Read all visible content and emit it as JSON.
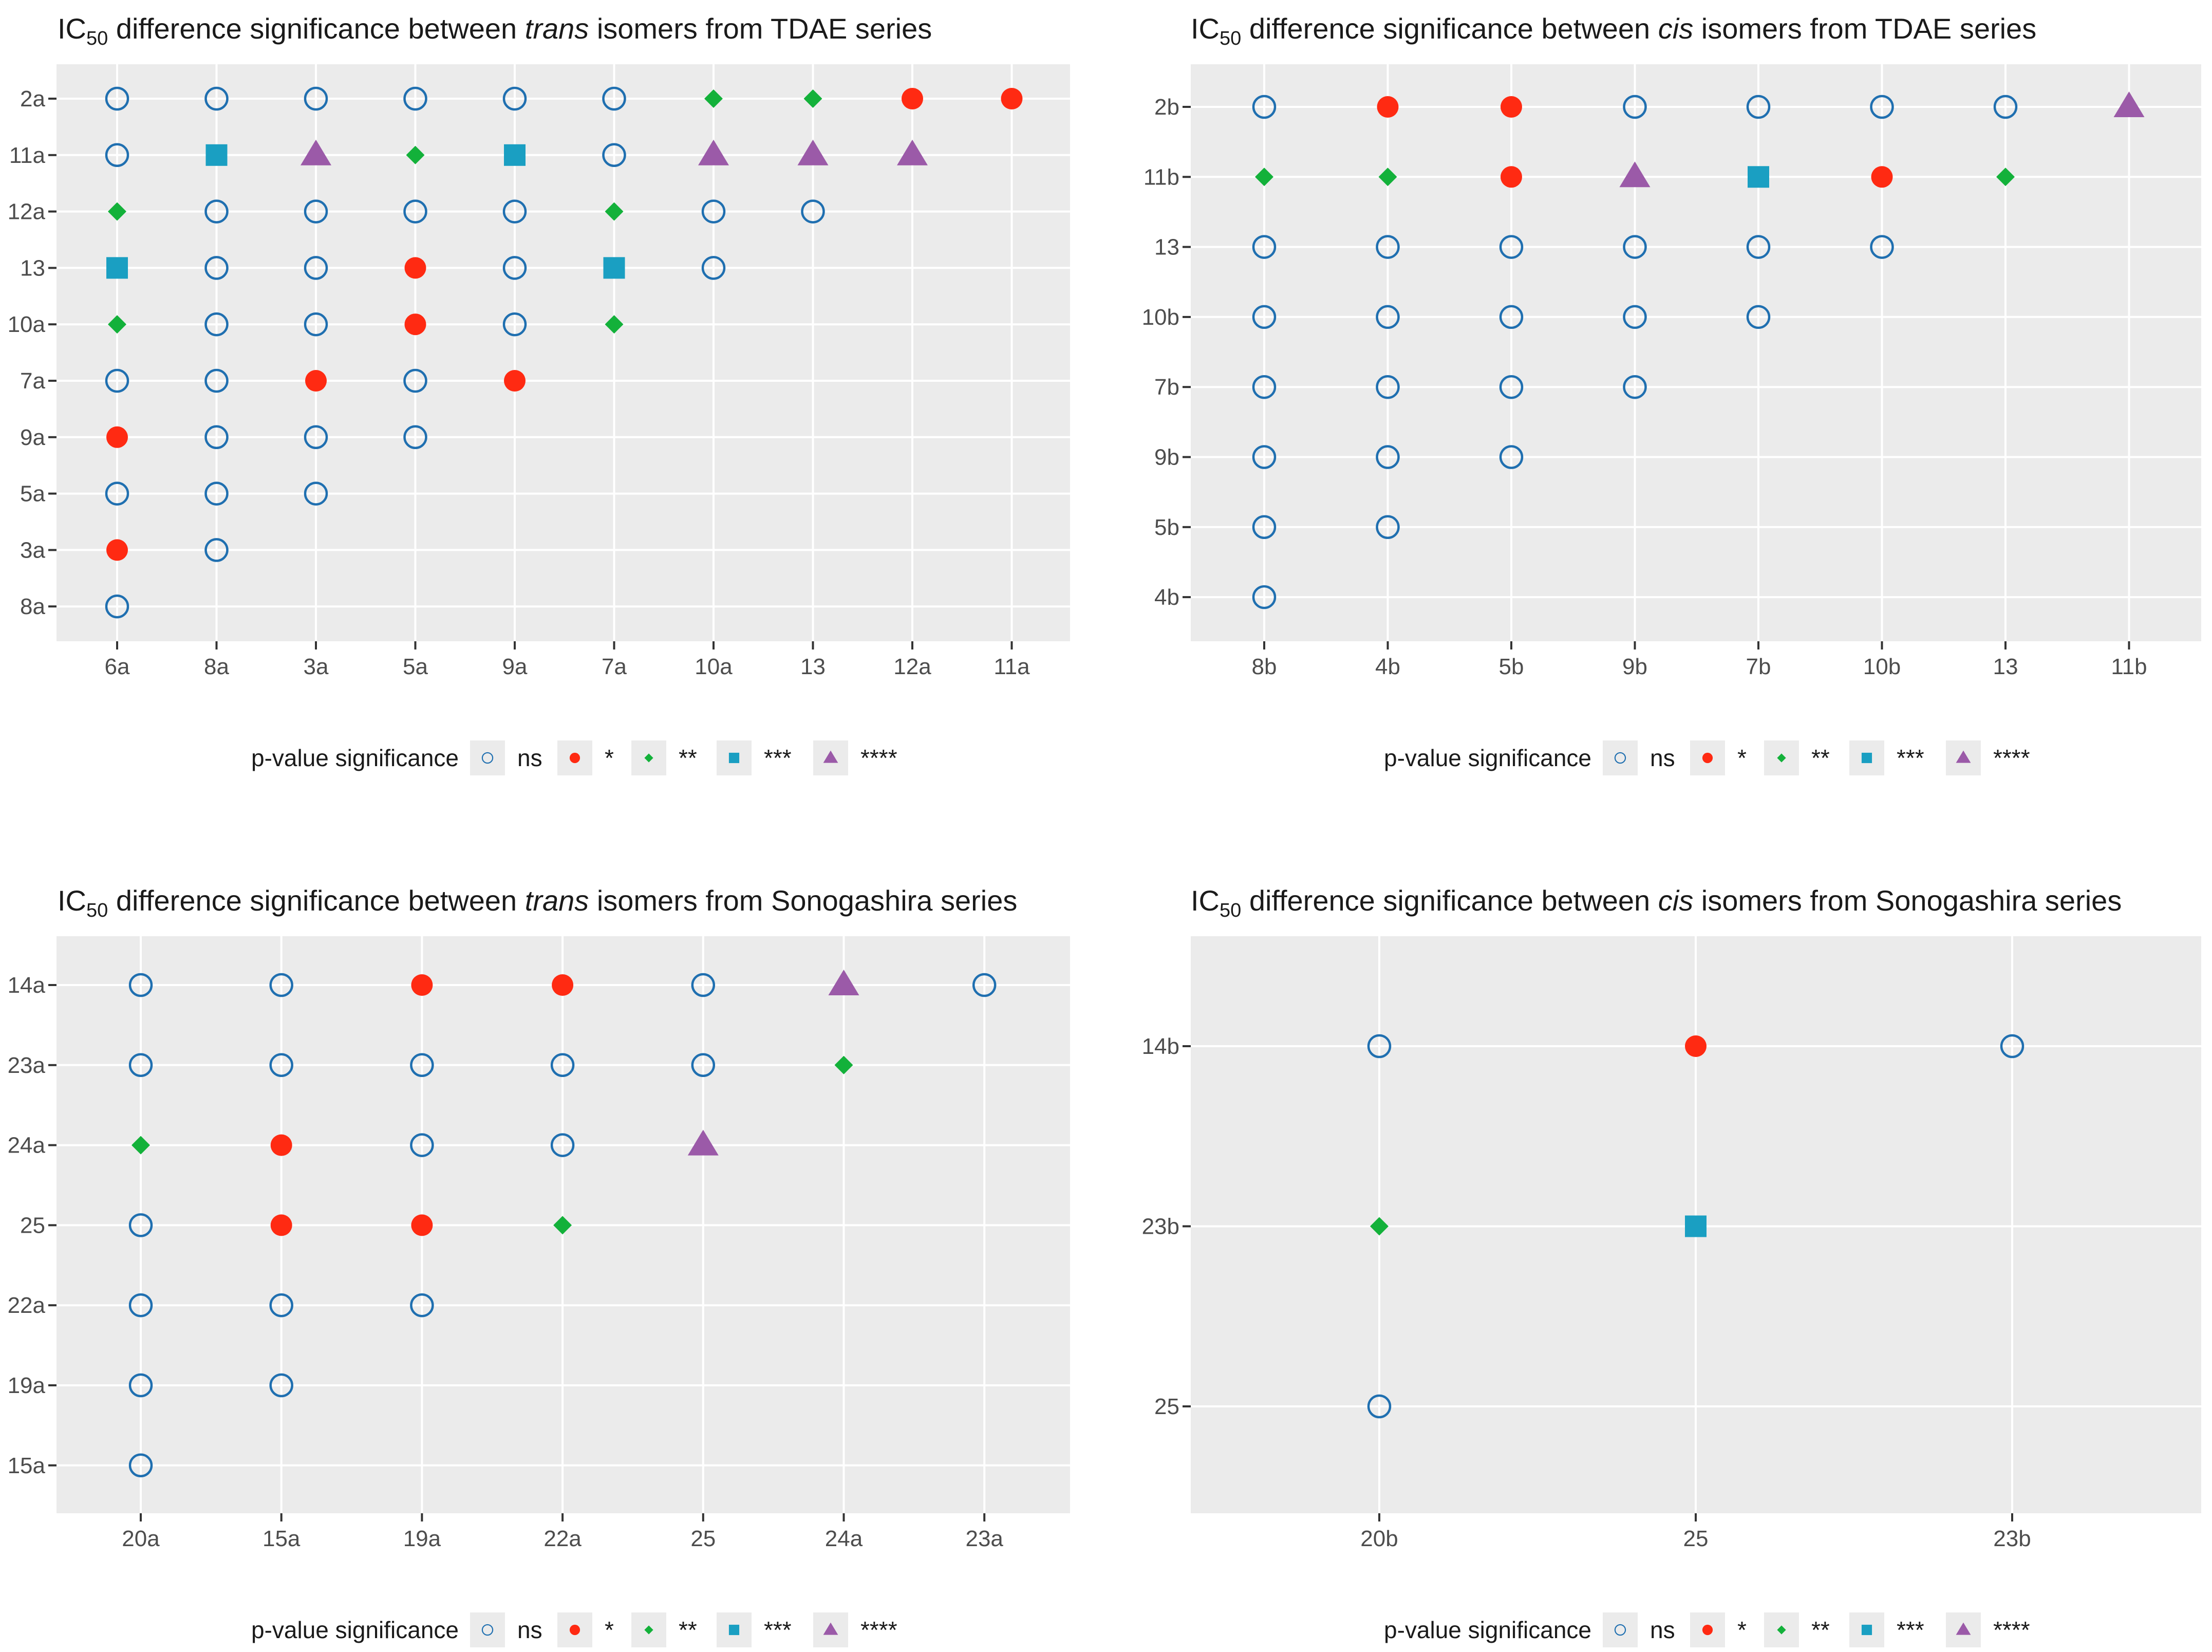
{
  "colors": {
    "ns": "#1f6fb0",
    "*": "#ff2a12",
    "**": "#13b13a",
    "***": "#1a9fc2",
    "****": "#9b5aa8",
    "panel_bg": "#ebebeb",
    "grid": "#ffffff",
    "text": "#1a1a1a",
    "tick_text": "#4d4d4d"
  },
  "legend": {
    "title": "p-value significance",
    "items": [
      {
        "key": "ns",
        "label": "ns",
        "shape": "open-circle-icon"
      },
      {
        "key": "*",
        "label": "*",
        "shape": "filled-circle-icon"
      },
      {
        "key": "**",
        "label": "**",
        "shape": "diamond-icon"
      },
      {
        "key": "***",
        "label": "***",
        "shape": "square-icon"
      },
      {
        "key": "****",
        "label": "****",
        "shape": "triangle-icon"
      }
    ]
  },
  "chart_data": [
    {
      "type": "scatter",
      "title": {
        "prefix": "IC",
        "sub": "50",
        "mid": " difference significance between ",
        "italic": "trans",
        "suffix": " isomers from TDAE series"
      },
      "x_categories": [
        "6a",
        "8a",
        "3a",
        "5a",
        "9a",
        "7a",
        "10a",
        "13",
        "12a",
        "11a"
      ],
      "y_categories": [
        "2a",
        "11a",
        "12a",
        "13",
        "10a",
        "7a",
        "9a",
        "5a",
        "3a",
        "8a"
      ],
      "rows": [
        [
          "ns",
          "ns",
          "ns",
          "ns",
          "ns",
          "ns",
          "**",
          "**",
          "*",
          "*"
        ],
        [
          "ns",
          "***",
          "****",
          "**",
          "***",
          "ns",
          "****",
          "****",
          "****"
        ],
        [
          "**",
          "ns",
          "ns",
          "ns",
          "ns",
          "**",
          "ns",
          "ns"
        ],
        [
          "***",
          "ns",
          "ns",
          "*",
          "ns",
          "***",
          "ns"
        ],
        [
          "**",
          "ns",
          "ns",
          "*",
          "ns",
          "**"
        ],
        [
          "ns",
          "ns",
          "*",
          "ns",
          "*"
        ],
        [
          "*",
          "ns",
          "ns",
          "ns"
        ],
        [
          "ns",
          "ns",
          "ns"
        ],
        [
          "*",
          "ns"
        ],
        [
          "ns"
        ]
      ]
    },
    {
      "type": "scatter",
      "title": {
        "prefix": "IC",
        "sub": "50",
        "mid": " difference significance between ",
        "italic": "cis",
        "suffix": " isomers from TDAE series"
      },
      "x_categories": [
        "8b",
        "4b",
        "5b",
        "9b",
        "7b",
        "10b",
        "13",
        "11b"
      ],
      "y_categories": [
        "2b",
        "11b",
        "13",
        "10b",
        "7b",
        "9b",
        "5b",
        "4b"
      ],
      "rows": [
        [
          "ns",
          "*",
          "*",
          "ns",
          "ns",
          "ns",
          "ns",
          "****"
        ],
        [
          "**",
          "**",
          "*",
          "****",
          "***",
          "*",
          "**"
        ],
        [
          "ns",
          "ns",
          "ns",
          "ns",
          "ns",
          "ns"
        ],
        [
          "ns",
          "ns",
          "ns",
          "ns",
          "ns"
        ],
        [
          "ns",
          "ns",
          "ns",
          "ns"
        ],
        [
          "ns",
          "ns",
          "ns"
        ],
        [
          "ns",
          "ns"
        ],
        [
          "ns"
        ]
      ]
    },
    {
      "type": "scatter",
      "title": {
        "prefix": "IC",
        "sub": "50",
        "mid": " difference significance between ",
        "italic": "trans",
        "suffix": " isomers from Sonogashira series"
      },
      "x_categories": [
        "20a",
        "15a",
        "19a",
        "22a",
        "25",
        "24a",
        "23a"
      ],
      "y_categories": [
        "14a",
        "23a",
        "24a",
        "25",
        "22a",
        "19a",
        "15a"
      ],
      "rows": [
        [
          "ns",
          "ns",
          "*",
          "*",
          "ns",
          "****",
          "ns"
        ],
        [
          "ns",
          "ns",
          "ns",
          "ns",
          "ns",
          "**"
        ],
        [
          "**",
          "*",
          "ns",
          "ns",
          "****"
        ],
        [
          "ns",
          "*",
          "*",
          "**"
        ],
        [
          "ns",
          "ns",
          "ns"
        ],
        [
          "ns",
          "ns"
        ],
        [
          "ns"
        ]
      ]
    },
    {
      "type": "scatter",
      "title": {
        "prefix": "IC",
        "sub": "50",
        "mid": " difference significance between ",
        "italic": "cis",
        "suffix": " isomers from Sonogashira series"
      },
      "x_categories": [
        "20b",
        "25",
        "23b"
      ],
      "y_categories": [
        "14b",
        "23b",
        "25"
      ],
      "rows": [
        [
          "ns",
          "*",
          "ns"
        ],
        [
          "**",
          "***"
        ],
        [
          "ns"
        ]
      ]
    }
  ]
}
